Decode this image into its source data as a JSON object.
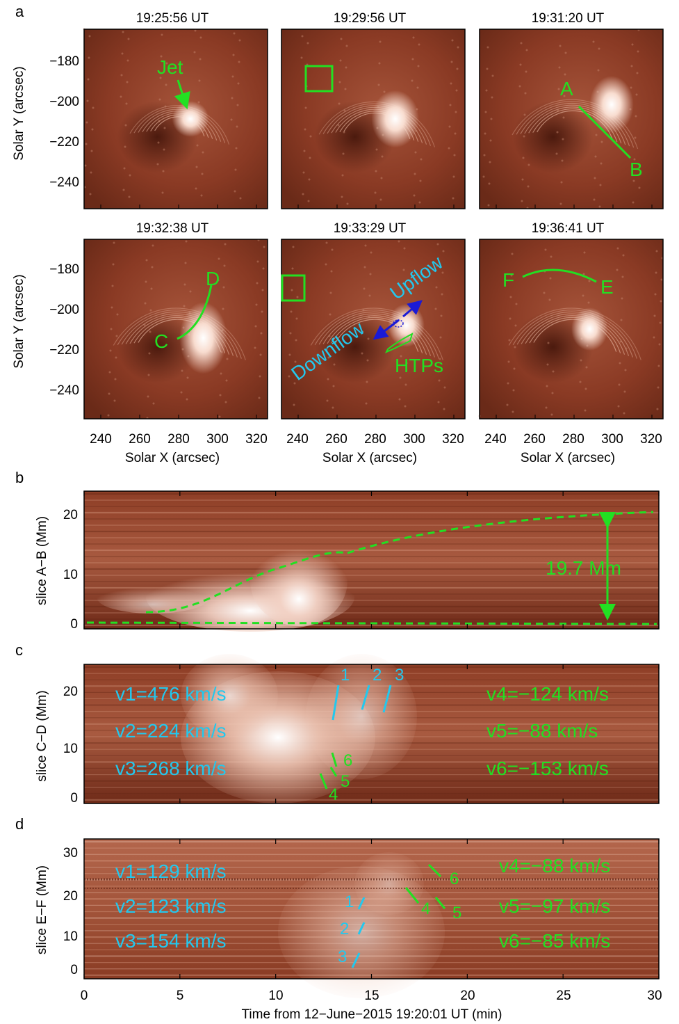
{
  "panel_labels": {
    "a": "a",
    "b": "b",
    "c": "c",
    "d": "d"
  },
  "panel_a": {
    "xlabel": "Solar X (arcsec)",
    "ylabel": "Solar Y (arcsec)",
    "xticks": [
      "240",
      "260",
      "280",
      "300",
      "320"
    ],
    "yticks": [
      "−180",
      "−200",
      "−220",
      "−240"
    ],
    "times": [
      "19:25:56 UT",
      "19:29:56 UT",
      "19:31:20 UT",
      "19:32:38 UT",
      "19:33:29 UT",
      "19:36:41 UT"
    ],
    "annotations": {
      "jet": "Jet",
      "A": "A",
      "B": "B",
      "C": "C",
      "D": "D",
      "E": "E",
      "F": "F",
      "downflow": "Downflow",
      "upflow": "Upflow",
      "htps": "HTPs"
    }
  },
  "panel_b": {
    "ylabel": "slice A−B (Mm)",
    "yticks": [
      "0",
      "10",
      "20"
    ],
    "label": "19.7 Mm"
  },
  "panel_c": {
    "ylabel": "slice C−D (Mm)",
    "yticks": [
      "0",
      "10",
      "20"
    ],
    "left_velocities": [
      "v1=476 km/s",
      "v2=224 km/s",
      "v3=268 km/s"
    ],
    "right_velocities": [
      "v4=−124 km/s",
      "v5=−88 km/s",
      "v6=−153 km/s"
    ],
    "marks": [
      "1",
      "2",
      "3",
      "4",
      "5",
      "6"
    ]
  },
  "panel_d": {
    "ylabel": "slice E−F (Mm)",
    "yticks": [
      "0",
      "10",
      "20",
      "30"
    ],
    "left_velocities": [
      "v1=129 km/s",
      "v2=123 km/s",
      "v3=154 km/s"
    ],
    "right_velocities": [
      "v4=−88 km/s",
      "v5=−97 km/s",
      "v6=−85 km/s"
    ],
    "marks": [
      "1",
      "2",
      "3",
      "4",
      "5",
      "6"
    ],
    "xticks": [
      "0",
      "5",
      "10",
      "15",
      "20",
      "25",
      "30"
    ],
    "xlabel": "Time from 12−June−2015 19:20:01 UT (min)"
  },
  "colors": {
    "green": "#22e022",
    "cyan": "#22c8ee",
    "blue": "#1a1ad6",
    "background": "#8a3a22"
  }
}
